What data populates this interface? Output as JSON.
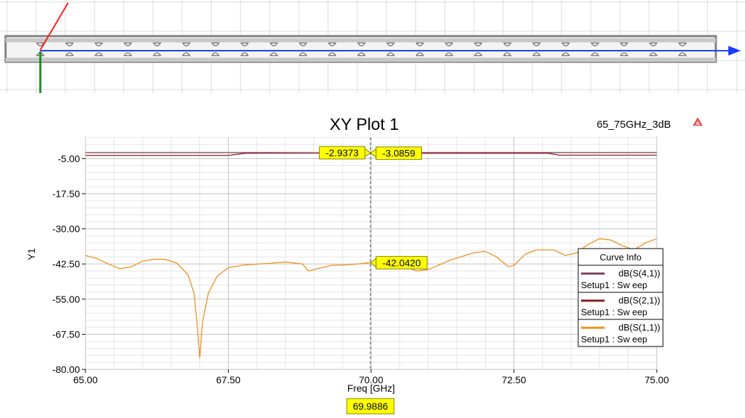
{
  "colors": {
    "s41": "#7a3c5c",
    "s21": "#8b1a1a",
    "s11": "#f08c1c",
    "marker_fill": "#ffff00",
    "axis_arrow_x": "#1a3cff",
    "axis_arrow_y": "#1a8a1a",
    "axis_arrow_z": "#ff1a1a",
    "waveguide": "#808080"
  },
  "chart_data": {
    "type": "line",
    "title": "XY Plot 1",
    "corner_label": "65_75GHz_3dB",
    "xlabel": "Freq [GHz]",
    "ylabel": "Y1",
    "xlim": [
      65,
      75
    ],
    "ylim": [
      -80,
      2.5
    ],
    "xticks": [
      65,
      67.5,
      70,
      72.5,
      75
    ],
    "xtick_labels": [
      "65.00",
      "67.50",
      "70.00",
      "72.50",
      "75.00"
    ],
    "yticks": [
      -5,
      -17.5,
      -30,
      -42.5,
      -55,
      -67.5,
      -80
    ],
    "ytick_labels": [
      "-5.00",
      "-17.50",
      "-30.00",
      "-42.50",
      "-55.00",
      "-67.50",
      "-80.00"
    ],
    "grid": true,
    "legend": {
      "title": "Curve Info",
      "placement": "right",
      "entries": [
        {
          "name": "dB(S(4,1))",
          "sub": "Setup1 : Sw eep",
          "color_key": "s41"
        },
        {
          "name": "dB(S(2,1))",
          "sub": "Setup1 : Sw eep",
          "color_key": "s21"
        },
        {
          "name": "dB(S(1,1))",
          "sub": "Setup1 : Sw eep",
          "color_key": "s11"
        }
      ]
    },
    "series": [
      {
        "name": "dB(S(4,1))",
        "color_key": "s41",
        "points": [
          [
            65.0,
            -2.9
          ],
          [
            66.5,
            -2.9
          ],
          [
            67.8,
            -2.9
          ],
          [
            69.0,
            -2.95
          ],
          [
            69.9886,
            -2.9373
          ],
          [
            71.0,
            -2.9
          ],
          [
            72.5,
            -2.9
          ],
          [
            73.2,
            -2.9
          ],
          [
            75.0,
            -2.9
          ]
        ]
      },
      {
        "name": "dB(S(2,1))",
        "color_key": "s21",
        "points": [
          [
            65.0,
            -3.9
          ],
          [
            67.5,
            -3.9
          ],
          [
            67.8,
            -3.1
          ],
          [
            69.0,
            -3.05
          ],
          [
            69.9886,
            -3.0859
          ],
          [
            71.0,
            -3.1
          ],
          [
            72.5,
            -3.1
          ],
          [
            73.1,
            -3.1
          ],
          [
            73.3,
            -3.8
          ],
          [
            75.0,
            -3.8
          ]
        ]
      },
      {
        "name": "dB(S(1,1))",
        "color_key": "s11",
        "points": [
          [
            65.0,
            -39.5
          ],
          [
            65.2,
            -40.5
          ],
          [
            65.4,
            -42.5
          ],
          [
            65.6,
            -44.2
          ],
          [
            65.8,
            -43.5
          ],
          [
            66.0,
            -41.5
          ],
          [
            66.2,
            -40.8
          ],
          [
            66.4,
            -40.9
          ],
          [
            66.6,
            -42.2
          ],
          [
            66.8,
            -46.5
          ],
          [
            66.9,
            -53.0
          ],
          [
            66.95,
            -63.0
          ],
          [
            67.0,
            -76.0
          ],
          [
            67.05,
            -63.0
          ],
          [
            67.15,
            -53.0
          ],
          [
            67.3,
            -47.0
          ],
          [
            67.5,
            -43.8
          ],
          [
            67.8,
            -42.8
          ],
          [
            68.2,
            -42.3
          ],
          [
            68.5,
            -41.8
          ],
          [
            68.8,
            -42.5
          ],
          [
            68.9,
            -45.0
          ],
          [
            69.0,
            -44.5
          ],
          [
            69.3,
            -43.0
          ],
          [
            69.6,
            -42.8
          ],
          [
            69.9886,
            -42.042
          ],
          [
            70.3,
            -42.5
          ],
          [
            70.6,
            -43.5
          ],
          [
            70.8,
            -45.0
          ],
          [
            71.0,
            -44.5
          ],
          [
            71.4,
            -41.0
          ],
          [
            71.8,
            -38.5
          ],
          [
            72.0,
            -38.0
          ],
          [
            72.2,
            -40.0
          ],
          [
            72.4,
            -43.5
          ],
          [
            72.5,
            -43.0
          ],
          [
            72.7,
            -39.0
          ],
          [
            72.9,
            -37.5
          ],
          [
            73.2,
            -37.5
          ],
          [
            73.4,
            -39.5
          ],
          [
            73.6,
            -38.5
          ],
          [
            73.8,
            -35.5
          ],
          [
            74.0,
            -33.5
          ],
          [
            74.2,
            -34.0
          ],
          [
            74.4,
            -36.0
          ],
          [
            74.6,
            -37.5
          ],
          [
            74.8,
            -35.0
          ],
          [
            75.0,
            -33.5
          ]
        ]
      }
    ],
    "markers": [
      {
        "series": "dB(S(4,1))",
        "label": "-2.9373",
        "y": -2.9373,
        "side": "left"
      },
      {
        "series": "dB(S(2,1))",
        "label": "-3.0859",
        "y": -3.0859,
        "side": "right"
      },
      {
        "series": "dB(S(1,1))",
        "label": "-42.0420",
        "y": -42.042,
        "side": "right"
      }
    ],
    "cursor": {
      "x": 69.9886,
      "label": "69.9886"
    }
  }
}
